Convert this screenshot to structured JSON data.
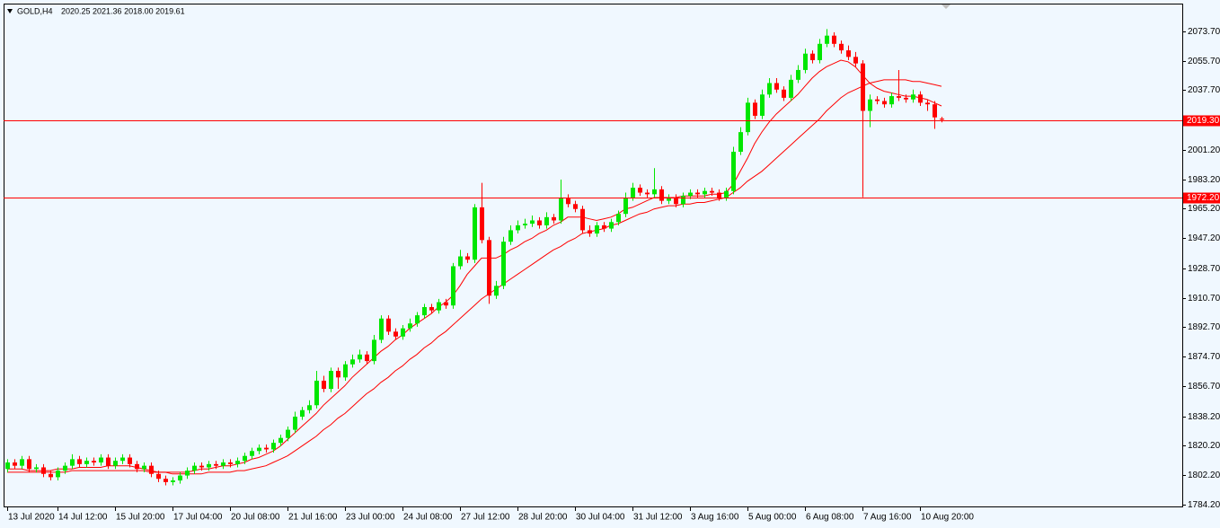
{
  "chart_data": {
    "type": "candlestick",
    "symbol": "GOLD,H4",
    "quote": "2020.25 2021.36 2018.00 2019.61",
    "up_color": "#00e600",
    "down_color": "#ff0000",
    "ylim": [
      1783.1,
      2090.6
    ],
    "yticks": [
      {
        "value": 1784.2,
        "label": "1784.20"
      },
      {
        "value": 1802.2,
        "label": "1802.20"
      },
      {
        "value": 1820.2,
        "label": "1820.20"
      },
      {
        "value": 1838.2,
        "label": "1838.20"
      },
      {
        "value": 1856.7,
        "label": "1856.70"
      },
      {
        "value": 1874.7,
        "label": "1874.70"
      },
      {
        "value": 1892.7,
        "label": "1892.70"
      },
      {
        "value": 1910.7,
        "label": "1910.70"
      },
      {
        "value": 1928.7,
        "label": "1928.70"
      },
      {
        "value": 1947.2,
        "label": "1947.20"
      },
      {
        "value": 1965.2,
        "label": "1965.20"
      },
      {
        "value": 1983.2,
        "label": "1983.20"
      },
      {
        "value": 2001.2,
        "label": "2001.20"
      },
      {
        "value": 2037.7,
        "label": "2037.70"
      },
      {
        "value": 2055.7,
        "label": "2055.70"
      },
      {
        "value": 2073.7,
        "label": "2073.70"
      }
    ],
    "hlines": [
      {
        "value": 2019.3,
        "label": "2019.30",
        "color": "#ff0000"
      },
      {
        "value": 1972.2,
        "label": "1972.20",
        "color": "#ff0000"
      }
    ],
    "categories": [
      "13 Jul 2020",
      null,
      null,
      null,
      null,
      null,
      null,
      "14 Jul 12:00",
      null,
      null,
      null,
      null,
      null,
      null,
      null,
      "15 Jul 20:00",
      null,
      null,
      null,
      null,
      null,
      null,
      null,
      "17 Jul 04:00",
      null,
      null,
      null,
      null,
      null,
      null,
      null,
      "20 Jul 08:00",
      null,
      null,
      null,
      null,
      null,
      null,
      null,
      "21 Jul 16:00",
      null,
      null,
      null,
      null,
      null,
      null,
      null,
      "23 Jul 00:00",
      null,
      null,
      null,
      null,
      null,
      null,
      null,
      "24 Jul 08:00",
      null,
      null,
      null,
      null,
      null,
      null,
      null,
      "27 Jul 12:00",
      null,
      null,
      null,
      null,
      null,
      null,
      null,
      "28 Jul 20:00",
      null,
      null,
      null,
      null,
      null,
      null,
      null,
      "30 Jul 04:00",
      null,
      null,
      null,
      null,
      null,
      null,
      null,
      "31 Jul 12:00",
      null,
      null,
      null,
      null,
      null,
      null,
      null,
      "3 Aug 16:00",
      null,
      null,
      null,
      null,
      null,
      null,
      null,
      "5 Aug 00:00",
      null,
      null,
      null,
      null,
      null,
      null,
      null,
      "6 Aug 08:00",
      null,
      null,
      null,
      null,
      null,
      null,
      null,
      "7 Aug 16:00",
      null,
      null,
      null,
      null,
      null,
      null,
      null,
      "10 Aug 20:00",
      null,
      null,
      null
    ],
    "open": [
      1806,
      1810,
      1808,
      1812,
      1806,
      1807,
      1803,
      1801,
      1805,
      1808,
      1812,
      1809,
      1811,
      1810,
      1813,
      1808,
      1811,
      1813,
      1809,
      1806,
      1808,
      1803,
      1800,
      1798,
      1799,
      1802,
      1805,
      1808,
      1807,
      1809,
      1808,
      1810,
      1809,
      1811,
      1814,
      1817,
      1819,
      1818,
      1822,
      1825,
      1830,
      1838,
      1842,
      1845,
      1860,
      1855,
      1866,
      1862,
      1870,
      1873,
      1876,
      1872,
      1885,
      1898,
      1890,
      1887,
      1892,
      1895,
      1900,
      1905,
      1903,
      1908,
      1906,
      1930,
      1936,
      1934,
      1966,
      1946,
      1912,
      1918,
      1945,
      1952,
      1955,
      1956,
      1958,
      1955,
      1960,
      1958,
      1972,
      1968,
      1965,
      1952,
      1950,
      1955,
      1953,
      1957,
      1962,
      1972,
      1978,
      1975,
      1974,
      1977,
      1970,
      1972,
      1968,
      1973,
      1975,
      1974,
      1976,
      1975,
      1972,
      1976,
      2000,
      2012,
      2030,
      2022,
      2035,
      2042,
      2038,
      2033,
      2044,
      2050,
      2060,
      2056,
      2066,
      2071,
      2066,
      2062,
      2058,
      2054,
      2025,
      2032,
      2031,
      2029,
      2034,
      2033,
      2032,
      2035,
      2030,
      2029,
      2020.25
    ],
    "high": [
      1812,
      1812,
      1814,
      1814,
      1809,
      1809,
      1805,
      1807,
      1810,
      1815,
      1814,
      1813,
      1813,
      1815,
      1815,
      1813,
      1815,
      1815,
      1811,
      1810,
      1810,
      1805,
      1802,
      1801,
      1804,
      1807,
      1810,
      1810,
      1811,
      1811,
      1812,
      1812,
      1813,
      1816,
      1819,
      1821,
      1821,
      1824,
      1827,
      1832,
      1841,
      1844,
      1848,
      1866,
      1863,
      1868,
      1868,
      1872,
      1876,
      1879,
      1878,
      1888,
      1900,
      1900,
      1892,
      1894,
      1898,
      1902,
      1907,
      1907,
      1910,
      1910,
      1932,
      1940,
      1938,
      1968,
      1981,
      1948,
      1921,
      1948,
      1955,
      1958,
      1959,
      1961,
      1960,
      1963,
      1962,
      1983,
      1974,
      1970,
      1967,
      1955,
      1957,
      1957,
      1959,
      1964,
      1975,
      1981,
      1980,
      1977,
      1990,
      1979,
      1974,
      1974,
      1975,
      1977,
      1977,
      1978,
      1978,
      1977,
      1978,
      2003,
      2015,
      2033,
      2032,
      2038,
      2045,
      2045,
      2040,
      2047,
      2053,
      2063,
      2062,
      2069,
      2075,
      2073,
      2068,
      2065,
      2061,
      2056,
      2035,
      2034,
      2033,
      2036,
      2050,
      2035,
      2038,
      2037,
      2032,
      2031,
      2021.36
    ],
    "low": [
      1804,
      1806,
      1806,
      1804,
      1804,
      1801,
      1799,
      1799,
      1803,
      1806,
      1807,
      1807,
      1808,
      1808,
      1806,
      1806,
      1809,
      1807,
      1804,
      1804,
      1801,
      1798,
      1796,
      1796,
      1797,
      1800,
      1803,
      1805,
      1805,
      1806,
      1806,
      1807,
      1807,
      1809,
      1812,
      1815,
      1816,
      1816,
      1820,
      1823,
      1828,
      1836,
      1840,
      1843,
      1853,
      1853,
      1855,
      1860,
      1868,
      1871,
      1870,
      1870,
      1883,
      1888,
      1885,
      1885,
      1890,
      1893,
      1898,
      1901,
      1901,
      1904,
      1904,
      1928,
      1932,
      1932,
      1944,
      1907,
      1910,
      1916,
      1943,
      1950,
      1953,
      1954,
      1953,
      1953,
      1956,
      1956,
      1966,
      1963,
      1950,
      1948,
      1948,
      1951,
      1951,
      1955,
      1960,
      1970,
      1973,
      1972,
      1972,
      1968,
      1968,
      1966,
      1966,
      1971,
      1972,
      1972,
      1973,
      1970,
      1970,
      1974,
      1998,
      2010,
      2020,
      2020,
      2033,
      2036,
      2031,
      2031,
      2042,
      2048,
      2054,
      2054,
      2064,
      2064,
      2060,
      2056,
      2052,
      1972.2,
      2015,
      2029,
      2027,
      2027,
      2031,
      2030,
      2030,
      2028,
      2025,
      2014,
      2018
    ],
    "close": [
      1810,
      1808,
      1812,
      1806,
      1807,
      1803,
      1801,
      1805,
      1808,
      1812,
      1809,
      1811,
      1810,
      1813,
      1808,
      1811,
      1813,
      1809,
      1806,
      1808,
      1803,
      1800,
      1798,
      1799,
      1802,
      1805,
      1808,
      1807,
      1809,
      1808,
      1810,
      1809,
      1811,
      1814,
      1817,
      1819,
      1818,
      1822,
      1825,
      1830,
      1838,
      1842,
      1845,
      1860,
      1855,
      1866,
      1862,
      1870,
      1873,
      1876,
      1872,
      1885,
      1898,
      1890,
      1887,
      1892,
      1895,
      1900,
      1905,
      1903,
      1908,
      1906,
      1930,
      1936,
      1934,
      1966,
      1946,
      1912,
      1918,
      1945,
      1952,
      1955,
      1956,
      1958,
      1955,
      1960,
      1958,
      1972,
      1968,
      1965,
      1952,
      1950,
      1955,
      1953,
      1957,
      1962,
      1972,
      1978,
      1975,
      1974,
      1977,
      1970,
      1972,
      1968,
      1973,
      1975,
      1974,
      1976,
      1975,
      1972,
      1976,
      2000,
      2012,
      2030,
      2022,
      2035,
      2042,
      2038,
      2033,
      2044,
      2050,
      2060,
      2056,
      2066,
      2071,
      2066,
      2062,
      2058,
      2054,
      2025,
      2032,
      2031,
      2029,
      2034,
      2033,
      2032,
      2035,
      2030,
      2029,
      2021,
      2019.61
    ],
    "lines": [
      {
        "color": "#ff0000",
        "values": [
          1806,
          1806,
          1806,
          1805,
          1805,
          1805,
          1805,
          1806,
          1806,
          1806,
          1807,
          1807,
          1807,
          1807,
          1808,
          1808,
          1808,
          1808,
          1807,
          1806,
          1805,
          1804,
          1804,
          1804,
          1804,
          1804,
          1805,
          1806,
          1806,
          1807,
          1808,
          1808,
          1809,
          1810,
          1812,
          1813,
          1815,
          1817,
          1820,
          1824,
          1828,
          1832,
          1836,
          1840,
          1845,
          1849,
          1853,
          1857,
          1862,
          1866,
          1870,
          1874,
          1878,
          1881,
          1885,
          1888,
          1892,
          1895,
          1898,
          1901,
          1905,
          1908,
          1912,
          1918,
          1925,
          1930,
          1935,
          1935,
          1935,
          1937,
          1940,
          1942,
          1945,
          1947,
          1950,
          1952,
          1955,
          1957,
          1960,
          1960,
          1960,
          1959,
          1958,
          1959,
          1960,
          1962,
          1965,
          1966,
          1968,
          1970,
          1972,
          1972,
          1972,
          1972,
          1973,
          1973,
          1973,
          1973,
          1974,
          1974,
          1975,
          1980,
          1988,
          1996,
          2005,
          2012,
          2018,
          2023,
          2027,
          2031,
          2035,
          2040,
          2045,
          2049,
          2052,
          2054,
          2056,
          2055,
          2052,
          2047,
          2042,
          2039,
          2037,
          2036,
          2035,
          2034,
          2034,
          2033,
          2032,
          2030,
          2028
        ]
      },
      {
        "color": "#ff0000",
        "values": [
          1804,
          1804,
          1804,
          1804,
          1804,
          1804,
          1804,
          1804,
          1804,
          1805,
          1805,
          1805,
          1805,
          1805,
          1805,
          1805,
          1805,
          1805,
          1805,
          1805,
          1804,
          1804,
          1804,
          1803,
          1803,
          1803,
          1803,
          1803,
          1804,
          1804,
          1804,
          1804,
          1805,
          1805,
          1806,
          1807,
          1808,
          1810,
          1812,
          1814,
          1817,
          1820,
          1823,
          1826,
          1830,
          1833,
          1837,
          1840,
          1844,
          1848,
          1852,
          1855,
          1859,
          1862,
          1866,
          1869,
          1873,
          1876,
          1880,
          1883,
          1887,
          1890,
          1894,
          1898,
          1902,
          1906,
          1910,
          1913,
          1916,
          1919,
          1922,
          1925,
          1928,
          1931,
          1934,
          1937,
          1940,
          1942,
          1945,
          1947,
          1950,
          1951,
          1952,
          1953,
          1955,
          1956,
          1958,
          1960,
          1962,
          1963,
          1965,
          1966,
          1967,
          1967,
          1968,
          1968,
          1969,
          1969,
          1970,
          1971,
          1972,
          1975,
          1978,
          1982,
          1985,
          1988,
          1992,
          1996,
          2000,
          2004,
          2008,
          2012,
          2016,
          2020,
          2025,
          2029,
          2033,
          2036,
          2038,
          2040,
          2042,
          2043,
          2044,
          2044,
          2044,
          2044,
          2043,
          2043,
          2042,
          2041,
          2040
        ]
      }
    ]
  }
}
